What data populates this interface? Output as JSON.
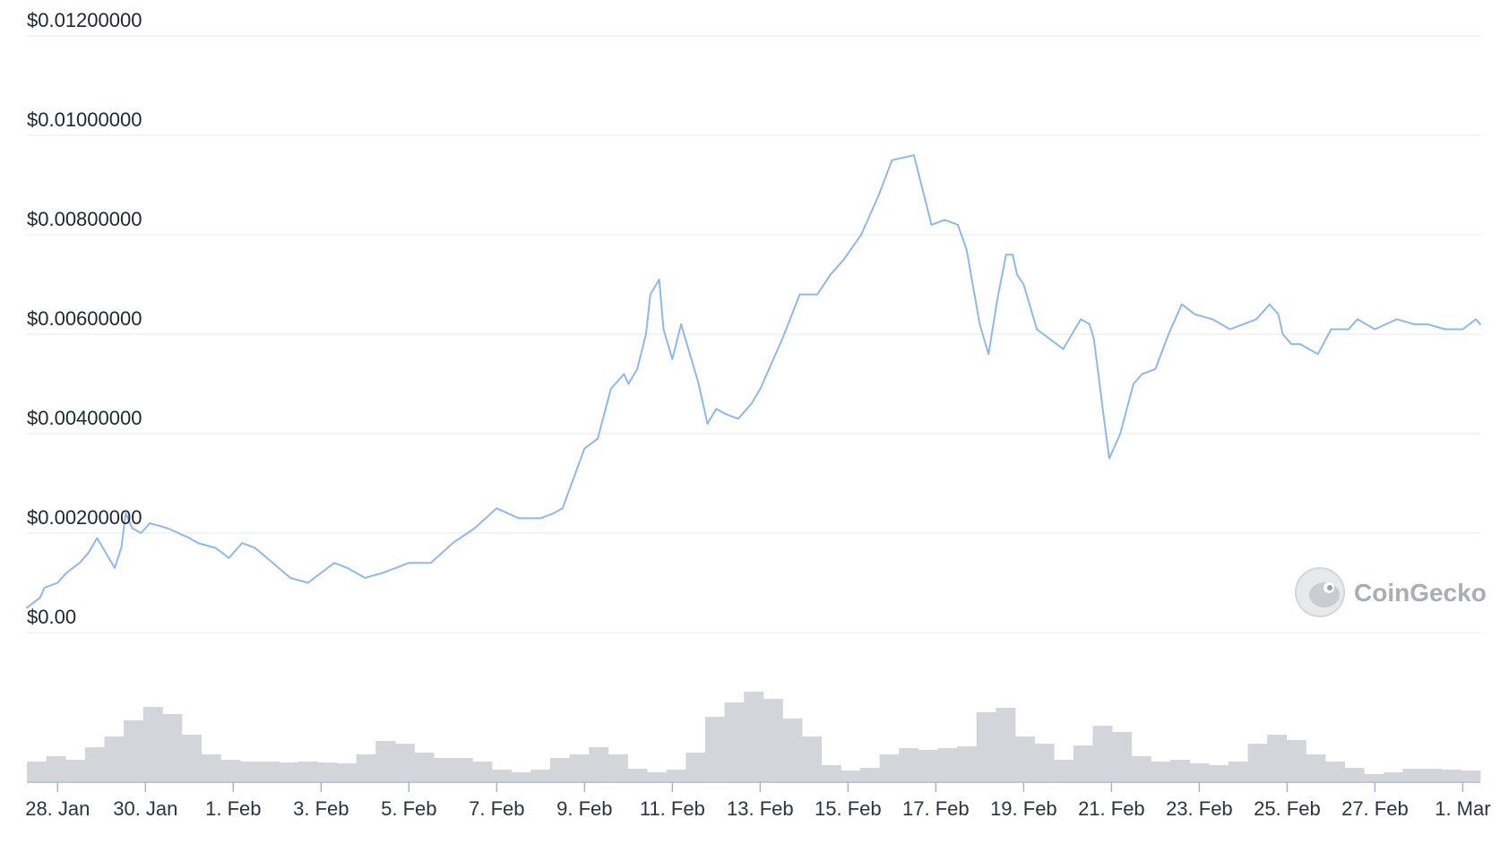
{
  "chart_data": {
    "type": "line",
    "title": "",
    "xlabel": "",
    "ylabel": "",
    "y_tick_labels": [
      "$0.00",
      "$0.00200000",
      "$0.00400000",
      "$0.00600000",
      "$0.00800000",
      "$0.01000000",
      "$0.01200000"
    ],
    "y_tick_values": [
      0,
      0.002,
      0.004,
      0.006,
      0.008,
      0.01,
      0.012
    ],
    "ylim": [
      0,
      0.012
    ],
    "x_tick_labels": [
      "28. Jan",
      "30. Jan",
      "1. Feb",
      "3. Feb",
      "5. Feb",
      "7. Feb",
      "9. Feb",
      "11. Feb",
      "13. Feb",
      "15. Feb",
      "17. Feb",
      "19. Feb",
      "21. Feb",
      "23. Feb",
      "25. Feb",
      "27. Feb",
      "1. Mar"
    ],
    "x_tick_days": [
      0,
      2,
      4,
      6,
      8,
      10,
      12,
      14,
      16,
      18,
      20,
      22,
      24,
      26,
      28,
      30,
      32
    ],
    "xlim": [
      -0.7,
      32.4
    ],
    "grid": true,
    "line_color": "#8fb8ec",
    "volume_color": "#d3d5da",
    "series": [
      {
        "values_x_day": [
          -0.7,
          -0.4,
          -0.3,
          0,
          0.2,
          0.5,
          0.7,
          0.9,
          1.1,
          1.3,
          1.45,
          1.55,
          1.7,
          1.9,
          2.1,
          2.5,
          3.0,
          3.2,
          3.6,
          3.9,
          4.2,
          4.5,
          4.9,
          5.3,
          5.7,
          6.0,
          6.3,
          6.6,
          7.0,
          7.4,
          7.7,
          8.0,
          8.5,
          9.0,
          9.5,
          10.0,
          10.5,
          11.0,
          11.3,
          11.5,
          12.0,
          12.3,
          12.6,
          12.9,
          13.0,
          13.2,
          13.4,
          13.5,
          13.7,
          13.8,
          14.0,
          14.2,
          14.4,
          14.6,
          14.8,
          15.0,
          15.2,
          15.5,
          15.6,
          15.8,
          16.0,
          16.5,
          16.9,
          17.3,
          17.6,
          17.9,
          18.3,
          18.7,
          19.0,
          19.5,
          19.9,
          20.2,
          20.5,
          20.7,
          21.0,
          21.2,
          21.4,
          21.6,
          21.75,
          21.85,
          22.0,
          22.3,
          22.6,
          22.9,
          23.1,
          23.3,
          23.5,
          23.6,
          23.8,
          23.95,
          24.2,
          24.5,
          24.7,
          25.0,
          25.3,
          25.6,
          25.9,
          26.3,
          26.7,
          27.0,
          27.3,
          27.6,
          27.8,
          27.9,
          28.1,
          28.3,
          28.7,
          29.0,
          29.4,
          29.6,
          30.0,
          30.5,
          30.9,
          31.2,
          31.6,
          32.0,
          32.3,
          32.4
        ],
        "values_y": [
          0.0005,
          0.0007,
          0.0009,
          0.001,
          0.0012,
          0.0014,
          0.0016,
          0.0019,
          0.0016,
          0.0013,
          0.0017,
          0.0024,
          0.0021,
          0.002,
          0.0022,
          0.0021,
          0.0019,
          0.0018,
          0.0017,
          0.0015,
          0.0018,
          0.0017,
          0.0014,
          0.0011,
          0.001,
          0.0012,
          0.0014,
          0.0013,
          0.0011,
          0.0012,
          0.0013,
          0.0014,
          0.0014,
          0.0018,
          0.0021,
          0.0025,
          0.0023,
          0.0023,
          0.0024,
          0.0025,
          0.0037,
          0.0039,
          0.0049,
          0.0052,
          0.005,
          0.0053,
          0.006,
          0.0068,
          0.0071,
          0.0061,
          0.0055,
          0.0062,
          0.0056,
          0.005,
          0.0042,
          0.0045,
          0.0044,
          0.0043,
          0.0044,
          0.0046,
          0.0049,
          0.0059,
          0.0068,
          0.0068,
          0.0072,
          0.0075,
          0.008,
          0.0088,
          0.0095,
          0.0096,
          0.0082,
          0.0083,
          0.0082,
          0.0077,
          0.0062,
          0.0056,
          0.0067,
          0.0076,
          0.0076,
          0.0072,
          0.007,
          0.0061,
          0.0059,
          0.0057,
          0.006,
          0.0063,
          0.0062,
          0.0059,
          0.0045,
          0.0035,
          0.004,
          0.005,
          0.0052,
          0.0053,
          0.006,
          0.0066,
          0.0064,
          0.0063,
          0.0061,
          0.0062,
          0.0063,
          0.0066,
          0.0064,
          0.006,
          0.0058,
          0.0058,
          0.0056,
          0.0061,
          0.0061,
          0.0063,
          0.0061,
          0.0063,
          0.0062,
          0.0062,
          0.0061,
          0.0061,
          0.0063,
          0.0062
        ]
      }
    ],
    "volume_relative": [
      0.22,
      0.28,
      0.24,
      0.38,
      0.5,
      0.68,
      0.83,
      0.75,
      0.52,
      0.3,
      0.24,
      0.22,
      0.22,
      0.21,
      0.22,
      0.21,
      0.2,
      0.3,
      0.45,
      0.42,
      0.32,
      0.26,
      0.26,
      0.22,
      0.13,
      0.1,
      0.13,
      0.26,
      0.3,
      0.38,
      0.3,
      0.14,
      0.1,
      0.13,
      0.32,
      0.72,
      0.88,
      1.0,
      0.92,
      0.7,
      0.5,
      0.18,
      0.12,
      0.15,
      0.3,
      0.37,
      0.35,
      0.37,
      0.39,
      0.77,
      0.82,
      0.5,
      0.42,
      0.24,
      0.4,
      0.62,
      0.55,
      0.28,
      0.22,
      0.24,
      0.2,
      0.18,
      0.22,
      0.42,
      0.52,
      0.46,
      0.3,
      0.22,
      0.15,
      0.08,
      0.1,
      0.14,
      0.14,
      0.13,
      0.12
    ]
  },
  "watermark": {
    "text": "CoinGecko"
  }
}
